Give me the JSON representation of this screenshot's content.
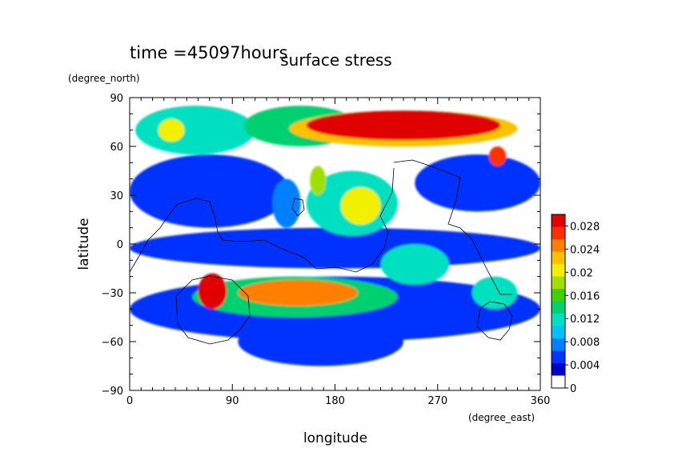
{
  "chart_data": {
    "type": "heatmap",
    "time_label": "time =45097hours",
    "title": "surface stress",
    "xlabel": "longitude",
    "ylabel": "latitude",
    "x_unit": "(degree_east)",
    "y_unit": "(degree_north)",
    "xlim": [
      0,
      360
    ],
    "ylim": [
      -90,
      90
    ],
    "xticks": [
      "0",
      "90",
      "180",
      "270",
      "360"
    ],
    "yticks": [
      "90",
      "60",
      "30",
      "0",
      "−30",
      "−60",
      "−90"
    ],
    "colorbar": {
      "min": 0,
      "max": 0.03,
      "ticks": [
        "0",
        "0.004",
        "0.008",
        "0.012",
        "0.016",
        "0.02",
        "0.024",
        "0.028"
      ],
      "colors": [
        "#ffffff",
        "#0000cc",
        "#0033ff",
        "#0080ff",
        "#00c0ff",
        "#00e0c0",
        "#00d070",
        "#40d000",
        "#a0e000",
        "#f0f000",
        "#ffc000",
        "#ff8000",
        "#ff3000",
        "#e00000"
      ]
    },
    "stress_features": [
      {
        "lon": [
          5,
          110
        ],
        "lat": [
          55,
          85
        ],
        "value": 0.011
      },
      {
        "lon": [
          100,
          200
        ],
        "lat": [
          60,
          85
        ],
        "value": 0.012
      },
      {
        "lon": [
          140,
          340
        ],
        "lat": [
          60,
          82
        ],
        "value": 0.022
      },
      {
        "lon": [
          155,
          325
        ],
        "lat": [
          64,
          82
        ],
        "value": 0.031
      },
      {
        "lon": [
          25,
          48
        ],
        "lat": [
          63,
          77
        ],
        "value": 0.02
      },
      {
        "lon": [
          315,
          330
        ],
        "lat": [
          48,
          60
        ],
        "value": 0.026
      },
      {
        "lon": [
          250,
          360
        ],
        "lat": [
          20,
          55
        ],
        "value": 0.005
      },
      {
        "lon": [
          0,
          140
        ],
        "lat": [
          10,
          55
        ],
        "value": 0.005
      },
      {
        "lon": [
          125,
          150
        ],
        "lat": [
          10,
          40
        ],
        "value": 0.006
      },
      {
        "lon": [
          155,
          235
        ],
        "lat": [
          5,
          45
        ],
        "value": 0.01
      },
      {
        "lon": [
          185,
          220
        ],
        "lat": [
          12,
          35
        ],
        "value": 0.02
      },
      {
        "lon": [
          158,
          172
        ],
        "lat": [
          30,
          48
        ],
        "value": 0.018
      },
      {
        "lon": [
          0,
          360
        ],
        "lat": [
          -15,
          10
        ],
        "value": 0.005
      },
      {
        "lon": [
          220,
          280
        ],
        "lat": [
          -25,
          0
        ],
        "value": 0.011
      },
      {
        "lon": [
          300,
          340
        ],
        "lat": [
          -40,
          -20
        ],
        "value": 0.01
      },
      {
        "lon": [
          0,
          360
        ],
        "lat": [
          -60,
          -20
        ],
        "value": 0.004
      },
      {
        "lon": [
          55,
          235
        ],
        "lat": [
          -45,
          -20
        ],
        "value": 0.012
      },
      {
        "lon": [
          60,
          85
        ],
        "lat": [
          -40,
          -18
        ],
        "value": 0.027
      },
      {
        "lon": [
          95,
          200
        ],
        "lat": [
          -38,
          -22
        ],
        "value": 0.023
      },
      {
        "lon": [
          65,
          85
        ],
        "lat": [
          -34,
          -22
        ],
        "value": 0.032
      },
      {
        "lon": [
          95,
          240
        ],
        "lat": [
          -75,
          -45
        ],
        "value": 0.005
      }
    ]
  }
}
